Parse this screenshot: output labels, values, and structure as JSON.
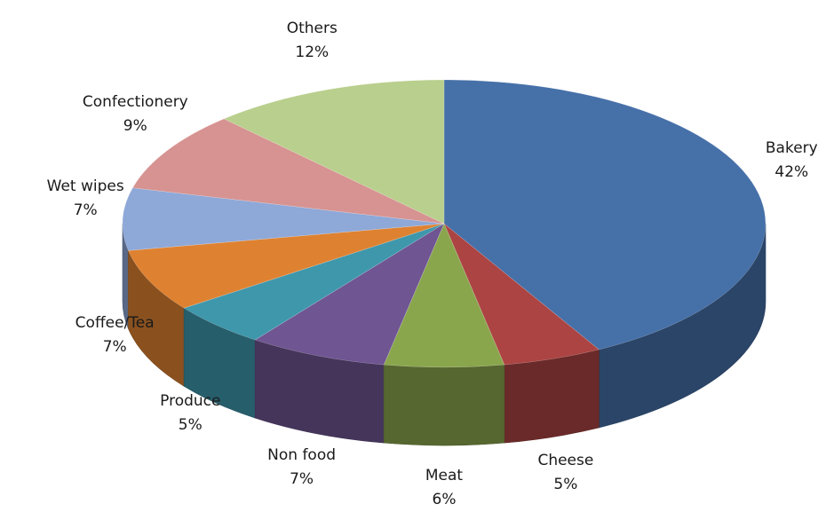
{
  "chart_data": {
    "type": "pie",
    "style": "3d",
    "slices": [
      {
        "label": "Bakery",
        "percent_label": "42%",
        "value": 42,
        "color": "#4670a8"
      },
      {
        "label": "Cheese",
        "percent_label": "5%",
        "value": 5,
        "color": "#ab4442"
      },
      {
        "label": "Meat",
        "percent_label": "6%",
        "value": 6,
        "color": "#8aa64d"
      },
      {
        "label": "Non food",
        "percent_label": "7%",
        "value": 7,
        "color": "#6f5592"
      },
      {
        "label": "Produce",
        "percent_label": "5%",
        "value": 5,
        "color": "#3f97ac"
      },
      {
        "label": "Coffee/Tea",
        "percent_label": "7%",
        "value": 7,
        "color": "#de8232"
      },
      {
        "label": "Wet wipes",
        "percent_label": "7%",
        "value": 7,
        "color": "#8ea8d8"
      },
      {
        "label": "Confectionery",
        "percent_label": "9%",
        "value": 9,
        "color": "#d69391"
      },
      {
        "label": "Others",
        "percent_label": "12%",
        "value": 12,
        "color": "#b9cf8d"
      }
    ]
  }
}
